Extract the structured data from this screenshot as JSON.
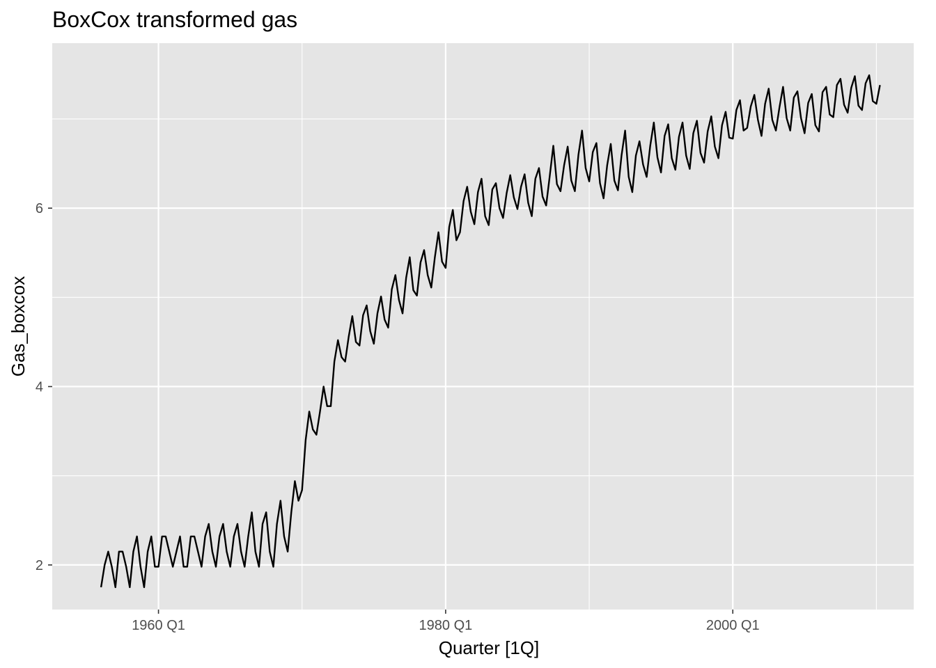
{
  "chart_data": {
    "type": "line",
    "title": "BoxCox transformed gas",
    "xlabel": "Quarter [1Q]",
    "ylabel": "Gas_boxcox",
    "x_ticks": [
      "1960 Q1",
      "1980 Q1",
      "2000 Q1"
    ],
    "y_ticks": [
      "2",
      "4",
      "6"
    ],
    "xlim": [
      1952.6,
      2012.6
    ],
    "ylim": [
      1.5,
      7.85
    ],
    "grid": true,
    "x_start": "1956 Q1",
    "x_end": "2010 Q2",
    "colors": {
      "panel": "#e5e5e5",
      "grid": "#ffffff",
      "line": "#000000"
    },
    "series": [
      {
        "values": [
          1.75,
          2.0,
          2.15,
          1.98,
          1.75,
          2.15,
          2.15,
          1.98,
          1.75,
          2.15,
          2.32,
          1.98,
          1.75,
          2.15,
          2.32,
          1.98,
          1.98,
          2.32,
          2.32,
          2.15,
          1.98,
          2.15,
          2.32,
          1.98,
          1.98,
          2.32,
          2.32,
          2.15,
          1.98,
          2.32,
          2.46,
          2.15,
          1.98,
          2.32,
          2.46,
          2.15,
          1.98,
          2.32,
          2.46,
          2.15,
          1.98,
          2.32,
          2.59,
          2.15,
          1.98,
          2.46,
          2.59,
          2.15,
          1.98,
          2.46,
          2.72,
          2.32,
          2.15,
          2.59,
          2.94,
          2.72,
          2.84,
          3.4,
          3.72,
          3.52,
          3.46,
          3.72,
          4.0,
          3.78,
          3.78,
          4.28,
          4.52,
          4.33,
          4.28,
          4.56,
          4.79,
          4.5,
          4.46,
          4.8,
          4.91,
          4.62,
          4.48,
          4.82,
          5.01,
          4.75,
          4.66,
          5.09,
          5.25,
          4.97,
          4.82,
          5.22,
          5.45,
          5.08,
          5.02,
          5.39,
          5.53,
          5.25,
          5.11,
          5.45,
          5.73,
          5.4,
          5.33,
          5.79,
          5.98,
          5.64,
          5.73,
          6.08,
          6.24,
          5.96,
          5.82,
          6.18,
          6.33,
          5.91,
          5.81,
          6.21,
          6.28,
          6.0,
          5.89,
          6.17,
          6.37,
          6.12,
          5.99,
          6.24,
          6.38,
          6.06,
          5.91,
          6.33,
          6.45,
          6.13,
          6.03,
          6.36,
          6.7,
          6.27,
          6.19,
          6.48,
          6.69,
          6.31,
          6.19,
          6.6,
          6.87,
          6.45,
          6.3,
          6.63,
          6.73,
          6.28,
          6.11,
          6.48,
          6.72,
          6.31,
          6.2,
          6.59,
          6.87,
          6.35,
          6.18,
          6.59,
          6.75,
          6.49,
          6.35,
          6.7,
          6.96,
          6.57,
          6.4,
          6.81,
          6.94,
          6.56,
          6.43,
          6.8,
          6.96,
          6.59,
          6.44,
          6.84,
          6.98,
          6.62,
          6.51,
          6.86,
          7.03,
          6.69,
          6.56,
          6.93,
          7.08,
          6.79,
          6.78,
          7.1,
          7.21,
          6.87,
          6.9,
          7.14,
          7.27,
          6.99,
          6.81,
          7.17,
          7.34,
          6.99,
          6.87,
          7.13,
          7.36,
          7.01,
          6.87,
          7.24,
          7.31,
          7.01,
          6.84,
          7.18,
          7.28,
          6.93,
          6.86,
          7.3,
          7.36,
          7.05,
          7.02,
          7.38,
          7.45,
          7.16,
          7.07,
          7.35,
          7.48,
          7.15,
          7.1,
          7.4,
          7.49,
          7.2,
          7.17,
          7.38
        ]
      }
    ]
  }
}
